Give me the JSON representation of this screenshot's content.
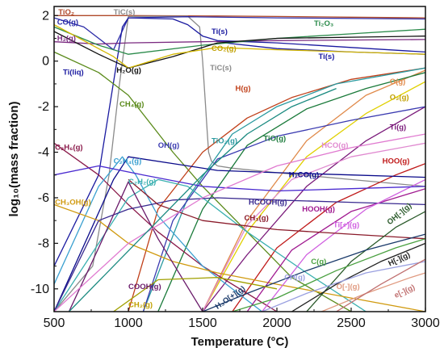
{
  "chart_data": {
    "type": "line",
    "title": "",
    "xlabel": "Temperature (°C)",
    "ylabel": "log₁₀(mass fraction)",
    "xlim": [
      500,
      3000
    ],
    "ylim": [
      -11,
      2.4
    ],
    "xticks": [
      "500",
      "1000",
      "1500",
      "2000",
      "2500",
      "3000"
    ],
    "yticks": [
      "2",
      "0",
      "-2",
      "-4",
      "-6",
      "-8",
      "-10"
    ],
    "grid": false,
    "legend": "none (inline labels)",
    "series": [
      {
        "label": "TiO₂",
        "color": "#b04a2a",
        "x": [
          500,
          1000,
          1600,
          2000,
          2500,
          3000
        ],
        "y": [
          2.0,
          2.0,
          1.98,
          1.96,
          1.93,
          1.9
        ],
        "lx": 528,
        "ly": 2.05
      },
      {
        "label": "TiC(s)",
        "color": "#8a8a8a",
        "x": [
          500,
          760,
          870,
          940,
          1000,
          1200,
          1400,
          1480,
          1500,
          1520,
          1530,
          1540,
          1560,
          1600
        ],
        "y": [
          -11,
          -9,
          -5,
          -1,
          1.96,
          1.97,
          1.97,
          1.5,
          0,
          -2,
          -3,
          -4,
          -4.4,
          -4.6
        ],
        "lx": 900,
        "ly": 2.05
      },
      {
        "label": "TiC(s)",
        "color": "#8a8a8a",
        "x": [
          1600,
          1700,
          2000,
          2500,
          3000
        ],
        "y": [
          -4.6,
          -4.7,
          -4.9,
          -5.2,
          -5.5
        ],
        "lx": 1550,
        "ly": -0.4
      },
      {
        "label": "CO(g)",
        "color": "#2b2ba8",
        "x": [
          500,
          700,
          900,
          1000,
          1400,
          2000,
          3000
        ],
        "y": [
          1.9,
          1.5,
          0.5,
          1.9,
          1.95,
          1.9,
          1.85
        ],
        "lx": 520,
        "ly": 1.6
      },
      {
        "label": "H₂(g)",
        "color": "#7a2a80",
        "x": [
          500,
          800,
          1000,
          1500,
          2000,
          3000
        ],
        "y": [
          0.85,
          0.75,
          0.8,
          0.85,
          0.9,
          0.95
        ],
        "lx": 520,
        "ly": 0.9
      },
      {
        "label": "Ti(liq)",
        "color": "#1a1aa0",
        "x": [
          500,
          800,
          960,
          1000
        ],
        "y": [
          -9,
          -5,
          1.5,
          1.9
        ],
        "lx": 560,
        "ly": -0.6
      },
      {
        "label": "Ti(s)",
        "color": "#1a1aa0",
        "x": [
          1000,
          1300,
          1400,
          1500,
          1600,
          2000,
          2500,
          3000
        ],
        "y": [
          1.9,
          1.85,
          1.6,
          1.1,
          0.9,
          0.8,
          0.6,
          0.4
        ],
        "lx": 1560,
        "ly": 1.2
      },
      {
        "label": "Ti(s)",
        "color": "#1a1aa0",
        "x": [
          1650,
          2000,
          2500,
          3000
        ],
        "y": [
          0.8,
          0.55,
          0.4,
          0.3
        ],
        "lx": 2280,
        "ly": 0.1
      },
      {
        "label": "Ti₂O₃",
        "color": "#2a8a4a",
        "x": [
          500,
          800,
          1000,
          1500,
          2000,
          2500,
          3000
        ],
        "y": [
          1.5,
          0.7,
          0.3,
          0.7,
          1.0,
          1.2,
          1.4
        ],
        "lx": 2250,
        "ly": 1.55
      },
      {
        "label": "H₂O(g)",
        "color": "#111111",
        "x": [
          500,
          800,
          1000,
          1300,
          1600,
          2000,
          2500,
          3000
        ],
        "y": [
          1.3,
          0.3,
          -0.3,
          0.2,
          0.8,
          1.0,
          1.05,
          1.1
        ],
        "lx": 920,
        "ly": -0.5
      },
      {
        "label": "CO₂(g)",
        "color": "#d4b800",
        "x": [
          500,
          900,
          1000,
          1300,
          1600,
          2000,
          3000
        ],
        "y": [
          1.6,
          0.2,
          -0.3,
          0.3,
          0.6,
          0.5,
          0.3
        ],
        "lx": 1560,
        "ly": 0.45
      },
      {
        "label": "CH₄(g)",
        "color": "#5a8a1a",
        "x": [
          500,
          800,
          1000,
          1300,
          1500,
          1800,
          2100,
          2500
        ],
        "y": [
          0.4,
          -0.5,
          -1.5,
          -4.0,
          -5.5,
          -7.5,
          -9.5,
          -11
        ],
        "lx": 940,
        "ly": -2.0
      },
      {
        "label": "H(g)",
        "color": "#c0401a",
        "x": [
          1000,
          1200,
          1500,
          1800,
          2100,
          2500,
          3000
        ],
        "y": [
          -11,
          -6.5,
          -4,
          -2.5,
          -1.6,
          -0.8,
          -0.3
        ],
        "lx": 1720,
        "ly": -1.3
      },
      {
        "label": "O(g)",
        "color": "#e08a4a",
        "x": [
          1500,
          1800,
          2200,
          2600,
          3000
        ],
        "y": [
          -11,
          -7,
          -3.5,
          -1.5,
          -0.4
        ],
        "lx": 2760,
        "ly": -1.0
      },
      {
        "label": "O₂(g)",
        "color": "#e0d000",
        "x": [
          1500,
          1800,
          2200,
          2600,
          3000
        ],
        "y": [
          -11,
          -7.5,
          -4.2,
          -2.3,
          -0.9
        ],
        "lx": 2760,
        "ly": -1.7
      },
      {
        "label": "Ti(g)",
        "color": "#7a1a7a",
        "x": [
          1500,
          1800,
          2200,
          2600,
          3000
        ],
        "y": [
          -11,
          -8.5,
          -5.5,
          -3.5,
          -2.0
        ],
        "lx": 2760,
        "ly": -3.0
      },
      {
        "label": "TiO₂(g)",
        "color": "#2a9aa0",
        "x": [
          1100,
          1400,
          1700,
          2000,
          2400,
          3000
        ],
        "y": [
          -11,
          -6,
          -3.2,
          -2.0,
          -1.0,
          -0.3
        ],
        "lx": 1560,
        "ly": -3.6
      },
      {
        "label": "TiO(g)",
        "color": "#1a7a3a",
        "x": [
          1200,
          1500,
          1800,
          2200,
          2600,
          3000
        ],
        "y": [
          -11,
          -6.5,
          -3.7,
          -2.1,
          -1.2,
          -0.5
        ],
        "lx": 1910,
        "ly": -3.5
      },
      {
        "label": "OH(g)",
        "color": "#3a3ab0",
        "x": [
          1100,
          1300,
          1600,
          2000,
          2500,
          3000
        ],
        "y": [
          -11,
          -7,
          -4.3,
          -3.3,
          -2.6,
          -2.0
        ],
        "lx": 1200,
        "ly": -3.8
      },
      {
        "label": "HCO(g)",
        "color": "#e08ad0",
        "x": [
          1500,
          1800,
          2100,
          2500,
          3000
        ],
        "y": [
          -11,
          -7.2,
          -5.2,
          -4.2,
          -3.6
        ],
        "lx": 2300,
        "ly": -3.8
      },
      {
        "label": "HOO(g)",
        "color": "#c01a1a",
        "x": [
          1700,
          2000,
          2400,
          2800,
          3000
        ],
        "y": [
          -11,
          -8.2,
          -6.2,
          -5.0,
          -4.5
        ],
        "lx": 2710,
        "ly": -4.5
      },
      {
        "label": "C₂H₆(g)",
        "color": "#8a1a4a",
        "x": [
          500,
          800,
          1000,
          1200,
          1500,
          2000
        ],
        "y": [
          -3.6,
          -5.0,
          -6.3,
          -7.5,
          -9.0,
          -11
        ],
        "lx": 506,
        "ly": -3.9
      },
      {
        "label": "C₂H₄(g)",
        "color": "#3aa0d0",
        "x": [
          500,
          800,
          960,
          1050,
          1200,
          1500,
          1900
        ],
        "y": [
          -9.8,
          -5.5,
          -4.2,
          -5.0,
          -6.8,
          -9.0,
          -11
        ],
        "lx": 900,
        "ly": -4.5
      },
      {
        "label": "C₂H₂(g)",
        "color": "#3ab0b0",
        "x": [
          500,
          800,
          1000,
          1200,
          1400,
          1800,
          2200,
          2600
        ],
        "y": [
          -11,
          -8,
          -6.0,
          -5.2,
          -5.5,
          -7.5,
          -9.3,
          -11
        ],
        "lx": 1000,
        "ly": -5.4
      },
      {
        "label": "H₂CO(g)",
        "color": "#0a0a8a",
        "x": [
          500,
          900,
          1000,
          1300,
          1600,
          2000,
          2500,
          3000
        ],
        "y": [
          -11,
          -5.2,
          -4.2,
          -4.5,
          -4.8,
          -4.9,
          -5.0,
          -5.1
        ],
        "lx": 2080,
        "ly": -5.1
      },
      {
        "label": "CH₃OH(g)",
        "color": "#d09a10",
        "x": [
          500,
          800,
          1000,
          1300,
          1600,
          2000,
          2500,
          3000
        ],
        "y": [
          -6.3,
          -7.0,
          -8.0,
          -8.8,
          -9.3,
          -9.8,
          -10.4,
          -11
        ],
        "lx": 506,
        "ly": -6.3
      },
      {
        "label": "HCOOH(g)",
        "color": "#3a2a90",
        "x": [
          500,
          800,
          1000,
          1300,
          1600,
          2000,
          2500,
          3000
        ],
        "y": [
          -11,
          -7.0,
          -6.5,
          -6.1,
          -6.0,
          -6.1,
          -6.2,
          -6.3
        ],
        "lx": 1810,
        "ly": -6.3
      },
      {
        "label": "HOOH(g)",
        "color": "#a01a90",
        "x": [
          1800,
          2100,
          2500,
          3000
        ],
        "y": [
          -11,
          -8.3,
          -6.6,
          -5.6
        ],
        "lx": 2170,
        "ly": -6.6
      },
      {
        "label": "Ti[+](g)",
        "color": "#d060e0",
        "x": [
          1900,
          2200,
          2600,
          3000
        ],
        "y": [
          -11,
          -8.5,
          -6.5,
          -5.2
        ],
        "lx": 2380,
        "ly": -7.3
      },
      {
        "label": "CH₃(g)",
        "color": "#8a1a2a",
        "x": [
          1000,
          1200,
          1500,
          2000,
          2500,
          3000
        ],
        "y": [
          -5.2,
          -6.3,
          -7.0,
          -7.4,
          -7.6,
          -7.8
        ],
        "lx": 1780,
        "ly": -7.0
      },
      {
        "label": "OH[-](g)",
        "color": "#2a5a2a",
        "x": [
          2200,
          2500,
          2800,
          3000
        ],
        "y": [
          -11,
          -8.8,
          -7.3,
          -6.6
        ],
        "lx": 2760,
        "ly": -7.2
      },
      {
        "label": "C(g)",
        "color": "#4aa040",
        "x": [
          1700,
          2000,
          2400,
          2800,
          3000
        ],
        "y": [
          -11,
          -10.4,
          -9.2,
          -8.2,
          -7.8
        ],
        "lx": 2230,
        "ly": -8.9
      },
      {
        "label": "H[-](g)",
        "color": "#222222",
        "x": [
          2100,
          2400,
          2700,
          3000
        ],
        "y": [
          -11,
          -9.8,
          -8.8,
          -8.0
        ],
        "lx": 2760,
        "ly": -9.0
      },
      {
        "label": "CH(g)",
        "color": "#9aa0e0",
        "x": [
          1900,
          2200,
          2600,
          3000
        ],
        "y": [
          -11,
          -10.2,
          -9.3,
          -8.8
        ],
        "lx": 2050,
        "ly": -9.6
      },
      {
        "label": "O[-](g)",
        "color": "#e09a80",
        "x": [
          2300,
          2600,
          2900,
          3000
        ],
        "y": [
          -11,
          -10.2,
          -9.5,
          -9.3
        ],
        "lx": 2400,
        "ly": -10.0
      },
      {
        "label": "e[-](g)",
        "color": "#c07070",
        "x": [
          2400,
          2700,
          3000
        ],
        "y": [
          -11,
          -9.8,
          -8.7
        ],
        "lx": 2800,
        "ly": -10.4
      },
      {
        "label": "H₃O[+](g)",
        "color": "#1a3a6a",
        "x": [
          1500,
          1800,
          2200,
          2600,
          3000
        ],
        "y": [
          -11,
          -10.2,
          -9.2,
          -8.3,
          -7.6
        ],
        "lx": 1600,
        "ly": -10.9
      },
      {
        "label": "COOH(g)",
        "color": "#6a1a6a",
        "x": [
          600,
          800,
          1000,
          1200,
          1500
        ],
        "y": [
          -11,
          -8.2,
          -5.3,
          -7.8,
          -11
        ],
        "lx": 1000,
        "ly": -10.0
      },
      {
        "label": "CH₂(g)",
        "color": "#a0a000",
        "x": [
          900,
          1200,
          1600,
          2000
        ],
        "y": [
          -11,
          -9.6,
          -9.5,
          -10.0
        ],
        "lx": 1000,
        "ly": -10.8
      },
      {
        "label": "",
        "color": "#4a2ad0",
        "x": [
          500,
          800,
          1100,
          1500,
          2000,
          2500,
          3000
        ],
        "y": [
          -5.0,
          -4.6,
          -5.0,
          -5.5,
          -5.7,
          -5.6,
          -5.5
        ],
        "lx": 0,
        "ly": 0
      },
      {
        "label": "",
        "color": "#e07ad0",
        "x": [
          500,
          1000,
          1500,
          2000,
          2500,
          3000
        ],
        "y": [
          -11,
          -8.0,
          -6.0,
          -4.6,
          -3.8,
          -3.2
        ],
        "lx": 0,
        "ly": 0
      },
      {
        "label": "",
        "color": "#1a8a80",
        "x": [
          600,
          900,
          1200,
          1500,
          1800,
          2100,
          2400
        ],
        "y": [
          -11,
          -9,
          -7,
          -5.0,
          -3.2,
          -2.0,
          -1.2
        ],
        "lx": 0,
        "ly": 0
      }
    ]
  }
}
